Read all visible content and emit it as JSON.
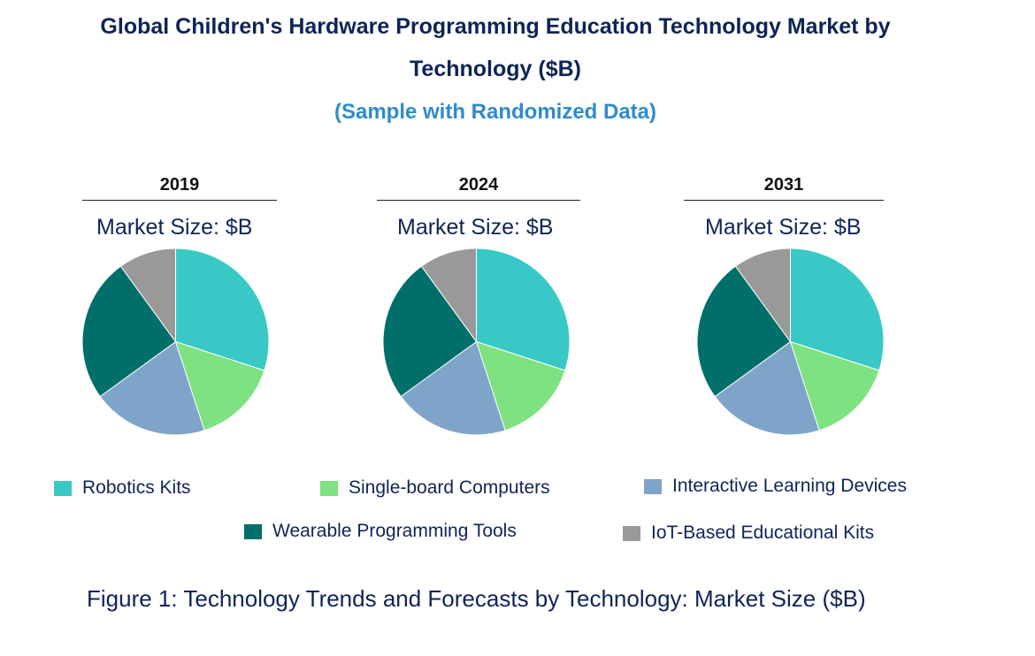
{
  "title_line1": "Global Children's Hardware Programming Education Technology Market by",
  "title_line2": "Technology ($B)",
  "subtitle": "(Sample with Randomized Data)",
  "caption": "Figure 1: Technology Trends and Forecasts by Technology: Market Size ($B)",
  "colors": {
    "robotics": "#38c9c6",
    "sbc": "#7de27f",
    "interactive": "#7ea4c9",
    "wearable": "#006f6a",
    "iot": "#999999"
  },
  "chart_data": [
    {
      "type": "pie",
      "title": "2019",
      "subtitle": "Market Size: $B",
      "categories": [
        "Robotics Kits",
        "Single-board Computers",
        "Interactive Learning Devices",
        "Wearable Programming Tools",
        "IoT-Based Educational Kits"
      ],
      "values": [
        30,
        15,
        20,
        25,
        10
      ]
    },
    {
      "type": "pie",
      "title": "2024",
      "subtitle": "Market Size: $B",
      "categories": [
        "Robotics Kits",
        "Single-board Computers",
        "Interactive Learning Devices",
        "Wearable Programming Tools",
        "IoT-Based Educational Kits"
      ],
      "values": [
        30,
        15,
        20,
        25,
        10
      ]
    },
    {
      "type": "pie",
      "title": "2031",
      "subtitle": "Market Size: $B",
      "categories": [
        "Robotics Kits",
        "Single-board Computers",
        "Interactive Learning Devices",
        "Wearable Programming Tools",
        "IoT-Based Educational Kits"
      ],
      "values": [
        30,
        15,
        20,
        25,
        10
      ]
    }
  ],
  "legend": [
    {
      "label": "Robotics Kits",
      "color_key": "robotics"
    },
    {
      "label": "Single-board Computers",
      "color_key": "sbc"
    },
    {
      "label": "Interactive Learning Devices",
      "color_key": "interactive"
    },
    {
      "label": "Wearable Programming Tools",
      "color_key": "wearable"
    },
    {
      "label": "IoT-Based Educational Kits",
      "color_key": "iot"
    }
  ]
}
